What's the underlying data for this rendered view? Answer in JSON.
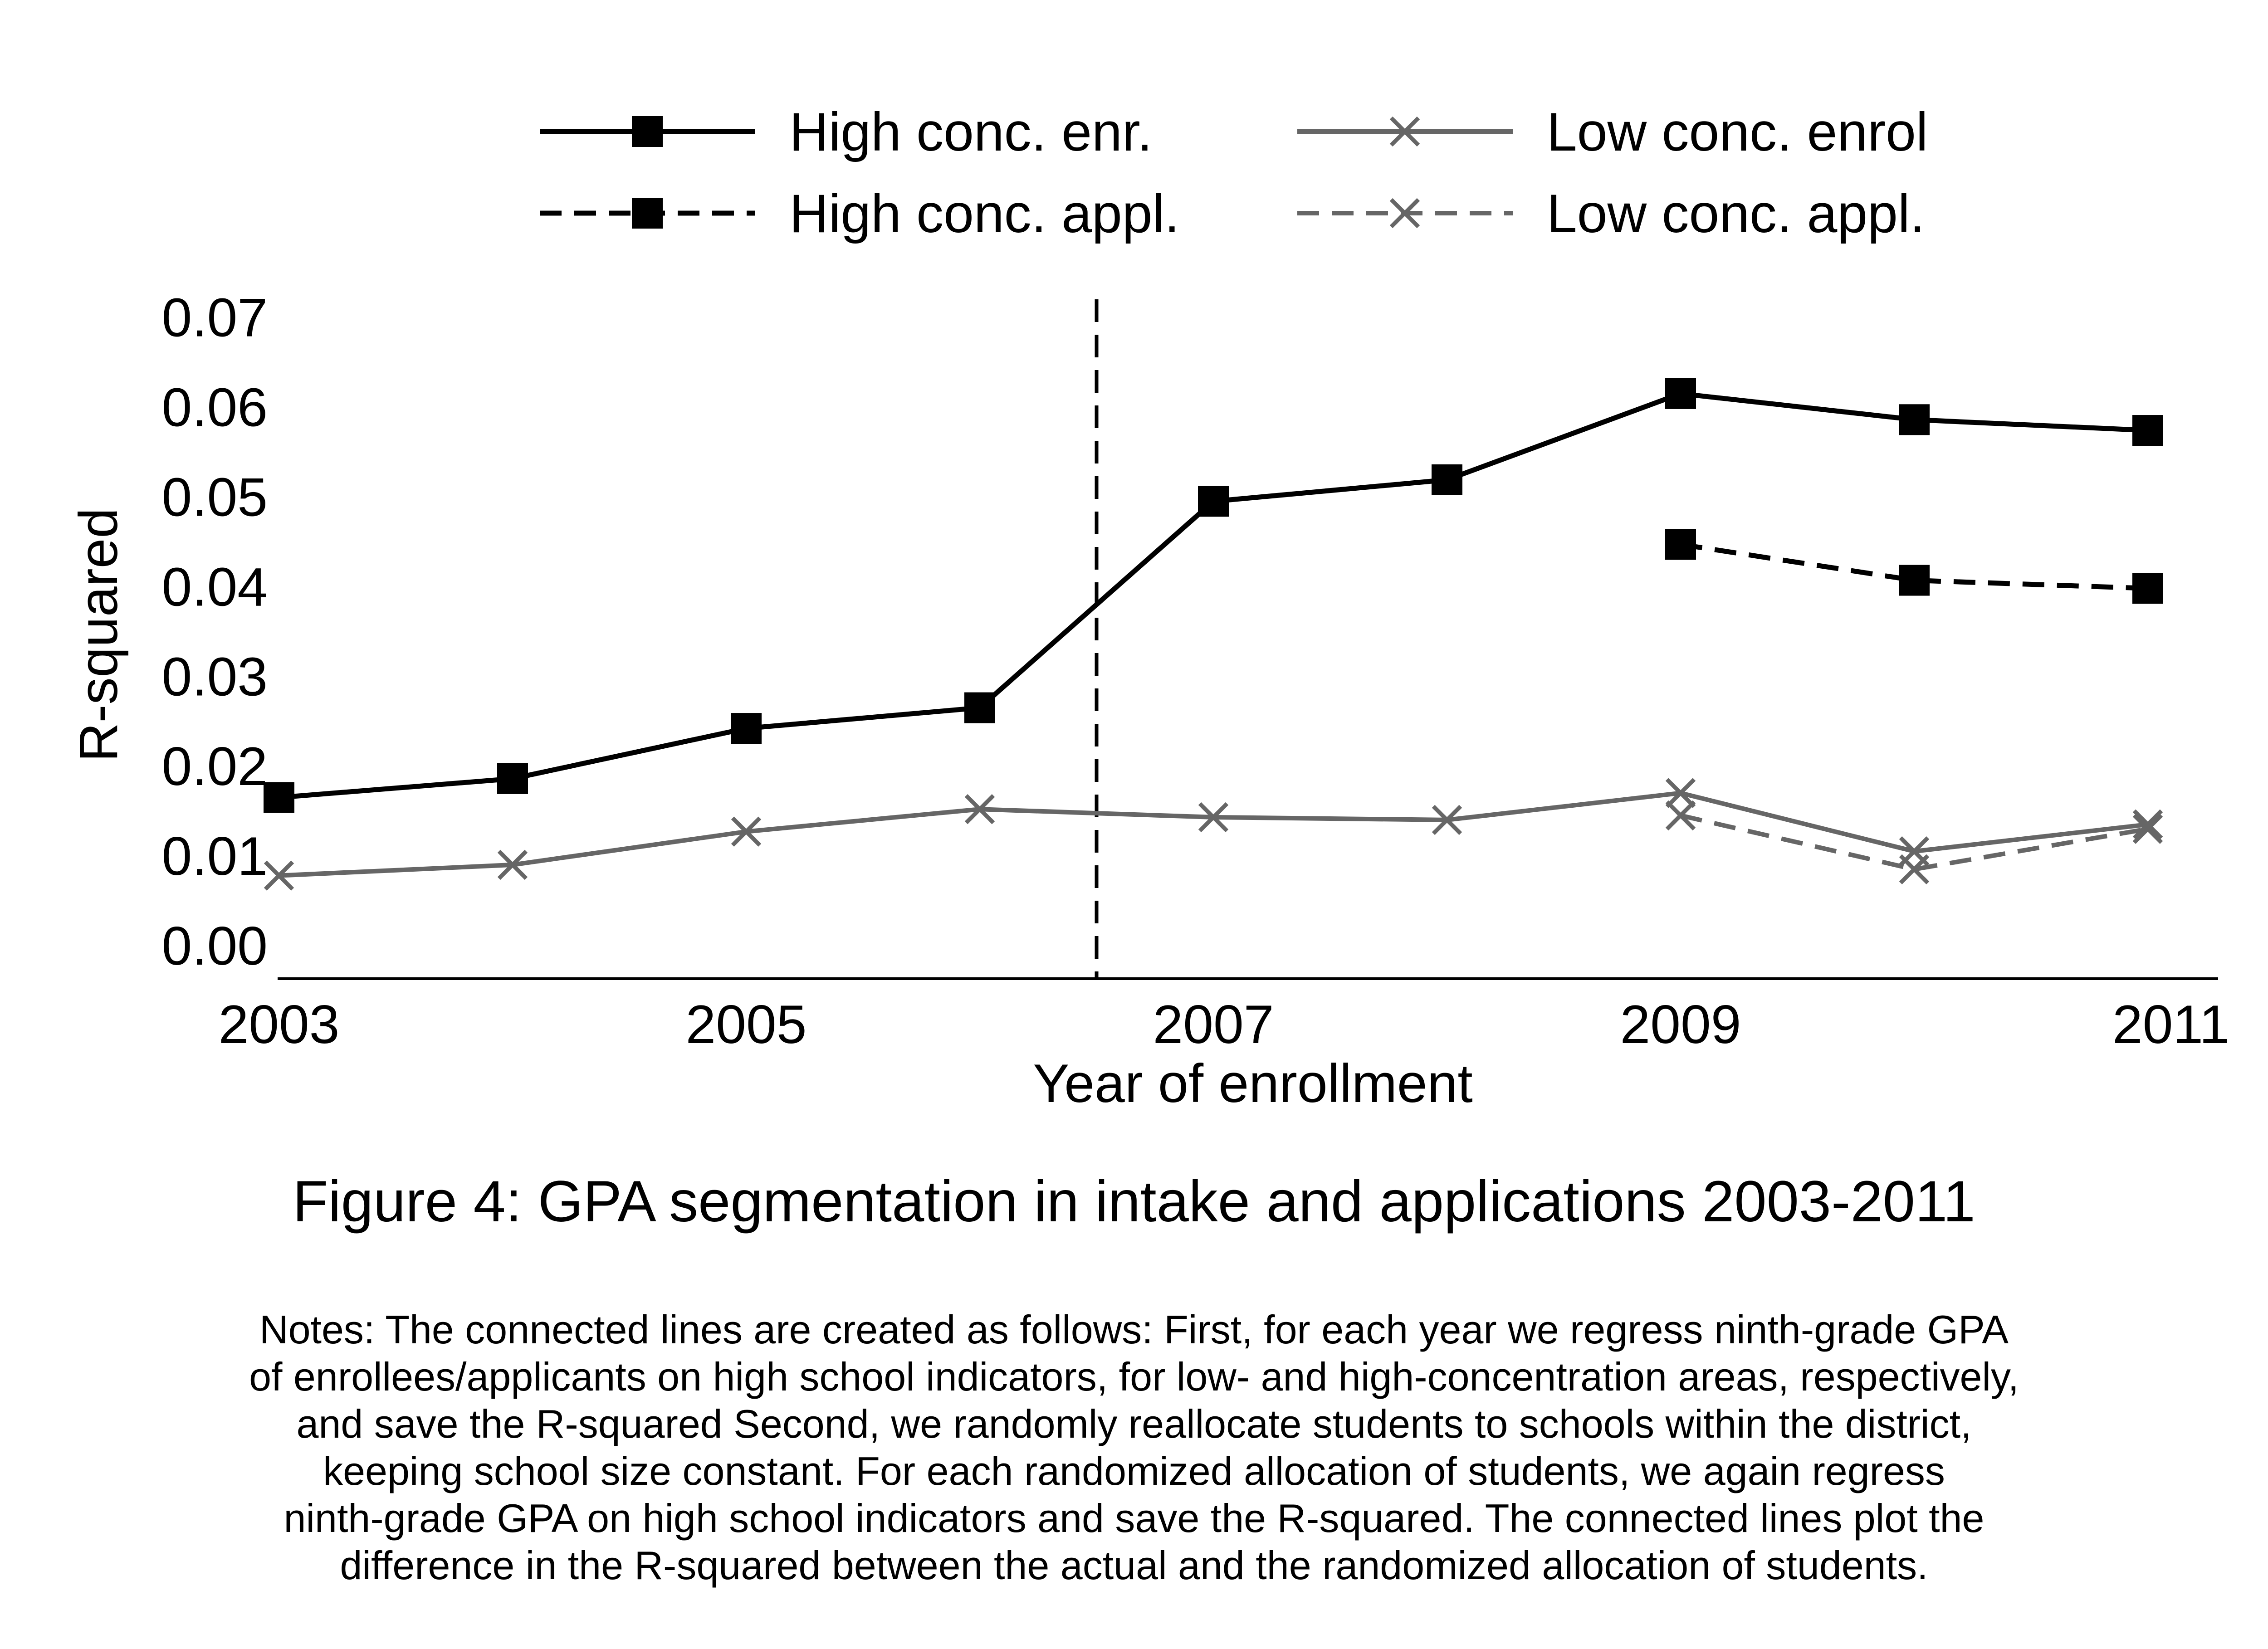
{
  "chart_data": {
    "type": "line",
    "title": "",
    "xlabel": "Year of enrollment",
    "ylabel": "R-squared",
    "x": [
      2003,
      2004,
      2005,
      2006,
      2007,
      2008,
      2009,
      2010,
      2011
    ],
    "xlim": [
      2003,
      2011
    ],
    "xticks": [
      "2003",
      "2005",
      "2007",
      "2009",
      "2011"
    ],
    "ylim": [
      0.0,
      0.07
    ],
    "yticks": [
      "0.00",
      "0.01",
      "0.02",
      "0.03",
      "0.04",
      "0.05",
      "0.06",
      "0.07"
    ],
    "grid": false,
    "legend_position": "top",
    "reference_line": {
      "x": 2006.5,
      "style": "dashed",
      "color": "#000000"
    },
    "series": [
      {
        "name": "High conc. enr.",
        "color": "#000000",
        "marker": "square",
        "dash": "solid",
        "x": [
          2003,
          2004,
          2005,
          2006,
          2007,
          2008,
          2009,
          2010,
          2011
        ],
        "values": [
          0.0165,
          0.0186,
          0.0242,
          0.0265,
          0.0495,
          0.0519,
          0.0615,
          0.0586,
          0.0574
        ]
      },
      {
        "name": "High conc. appl.",
        "color": "#000000",
        "marker": "square",
        "dash": "dashed",
        "x": [
          2009,
          2010,
          2011
        ],
        "values": [
          0.0447,
          0.0407,
          0.0398
        ]
      },
      {
        "name": "Low conc. enrol",
        "color": "#666666",
        "marker": "x",
        "dash": "solid",
        "x": [
          2003,
          2004,
          2005,
          2006,
          2007,
          2008,
          2009,
          2010,
          2011
        ],
        "values": [
          0.0078,
          0.009,
          0.0127,
          0.0152,
          0.0143,
          0.014,
          0.017,
          0.0105,
          0.0135
        ]
      },
      {
        "name": "Low conc. appl.",
        "color": "#666666",
        "marker": "x",
        "dash": "dashed",
        "x": [
          2009,
          2010,
          2011
        ],
        "values": [
          0.0145,
          0.0085,
          0.013
        ]
      }
    ]
  },
  "figure_caption": "Figure 4: GPA segmentation in intake and applications 2003-2011",
  "notes_lines": [
    "Notes: The connected lines are created as follows: First, for each year we regress ninth-grade GPA",
    "of enrollees/applicants on high school indicators, for low- and high-concentration areas, respectively,",
    "and save the R-squared Second, we randomly reallocate students to schools within the district,",
    "keeping school size constant. For each randomized allocation of students, we  again regress",
    "ninth-grade GPA on high school indicators and save the R-squared. The connected lines plot the",
    "difference  in the R-squared between the actual and the randomized allocation of students."
  ]
}
